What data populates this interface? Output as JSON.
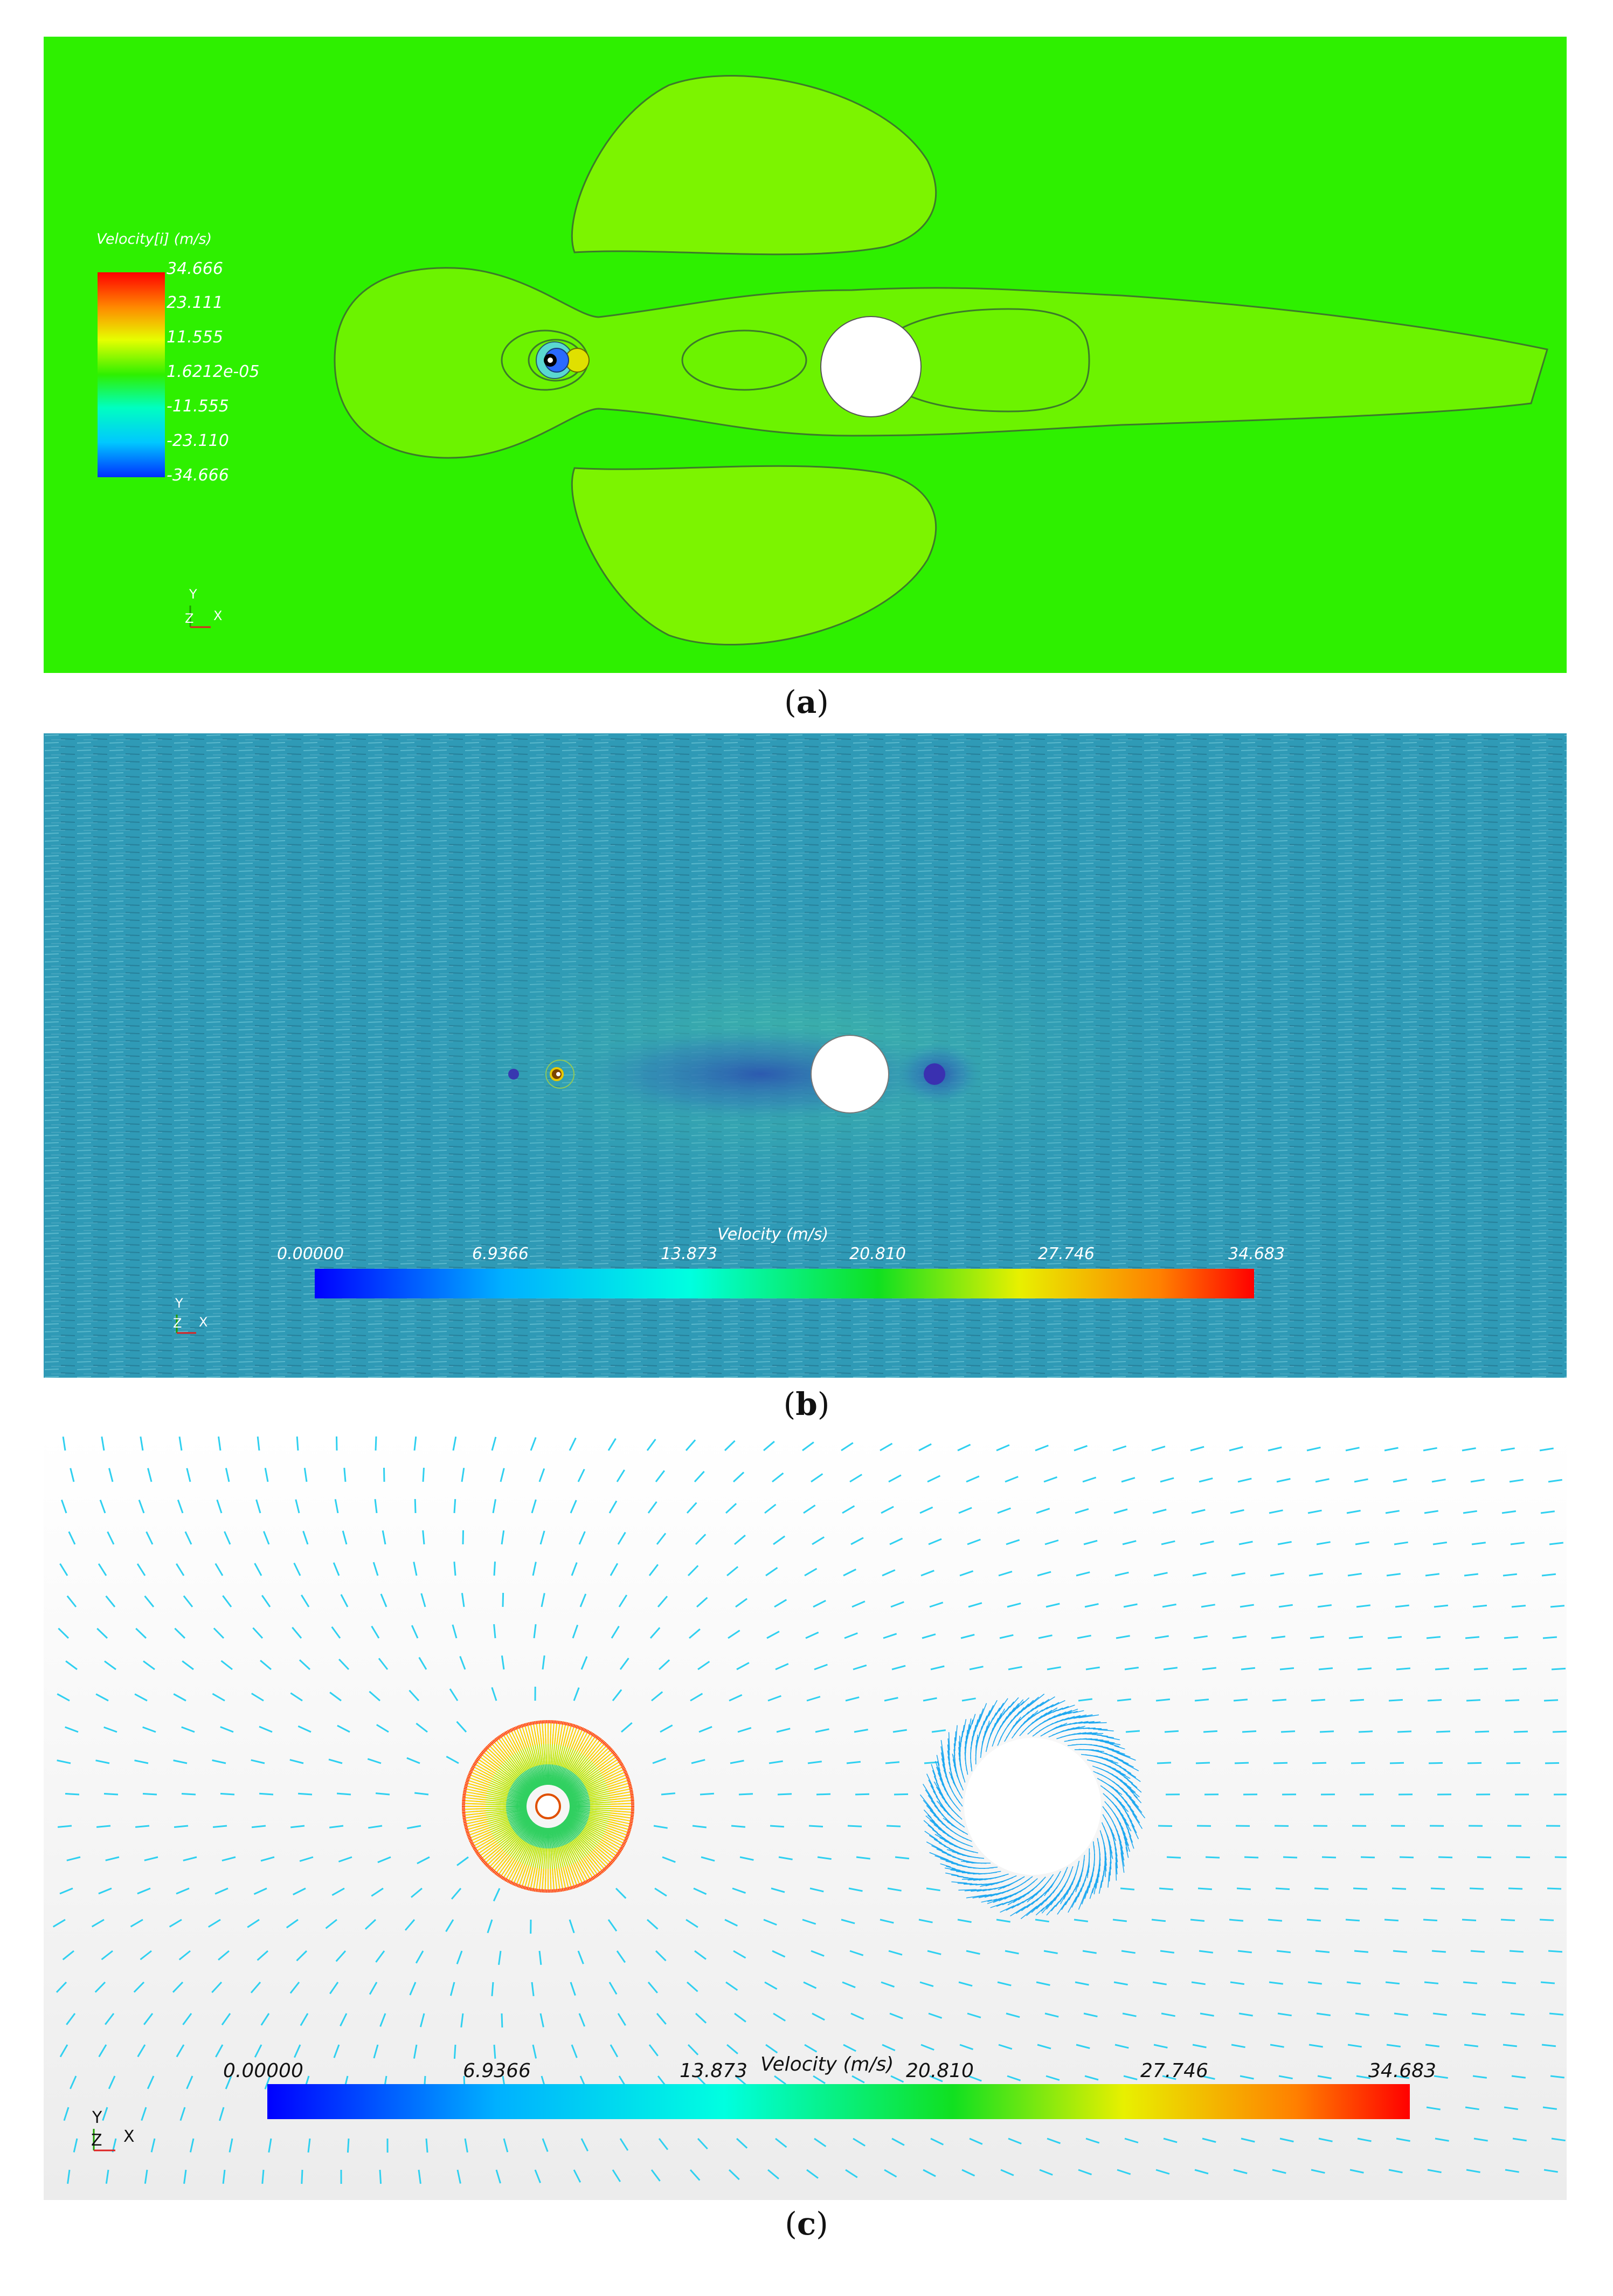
{
  "figure": {
    "panels": [
      {
        "id": "a",
        "caption": "a",
        "legend": {
          "title": "Velocity[i] (m/s)",
          "labels": [
            "34.666",
            "23.111",
            "11.555",
            "1.6212e-05",
            "-11.555",
            "-23.110",
            "-34.666"
          ]
        },
        "axes": {
          "y": "Y",
          "z": "Z",
          "x": "X"
        }
      },
      {
        "id": "b",
        "caption": "b",
        "colorbar": {
          "title": "Velocity (m/s)",
          "labels": [
            "0.00000",
            "6.9366",
            "13.873",
            "20.810",
            "27.746",
            "34.683"
          ]
        },
        "axes": {
          "y": "Y",
          "z": "Z",
          "x": "X"
        }
      },
      {
        "id": "c",
        "caption": "c",
        "colorbar": {
          "title": "Velocity (m/s)",
          "labels": [
            "0.00000",
            "6.9366",
            "13.873",
            "20.810",
            "27.746",
            "34.683"
          ]
        },
        "axes": {
          "y": "Y",
          "z": "Z",
          "x": "X"
        }
      }
    ],
    "colors": {
      "contour_background": "#2ef000",
      "contour_region": "#7cf400",
      "streak_background": "#2f9ab6",
      "vector_color": "#2fd0f0",
      "cylinder": "#ffffff"
    }
  }
}
